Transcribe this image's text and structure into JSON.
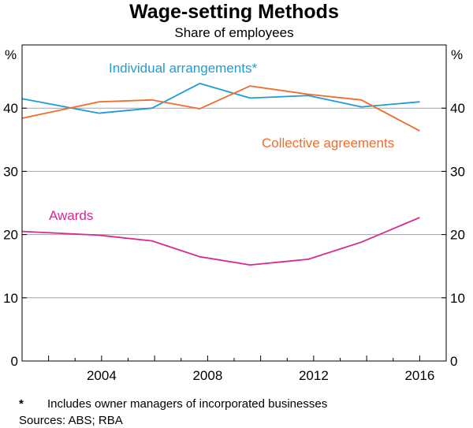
{
  "chart_data": {
    "type": "line",
    "title": "Wage-setting Methods",
    "subtitle": "Share of employees",
    "ylabel_left": "%",
    "ylabel_right": "%",
    "ylim": [
      0,
      50
    ],
    "xlim": [
      2001,
      2017
    ],
    "y_ticks": [
      0,
      10,
      20,
      30,
      40
    ],
    "x_ticks": [
      "2004",
      "2008",
      "2012",
      "2016"
    ],
    "grid": true,
    "series": [
      {
        "name": "Individual arrangements*",
        "color": "#1f9bd6",
        "x": [
          2001,
          2003.9,
          2005.9,
          2007.7,
          2009.6,
          2011.8,
          2013.8,
          2016
        ],
        "values": [
          41.5,
          39.2,
          40.0,
          43.9,
          41.6,
          42.0,
          40.2,
          41.0
        ]
      },
      {
        "name": "Collective agreements",
        "color": "#f26b2b",
        "x": [
          2001,
          2003.9,
          2005.9,
          2007.7,
          2009.6,
          2011.8,
          2013.8,
          2016
        ],
        "values": [
          38.4,
          41.0,
          41.3,
          39.9,
          43.5,
          42.2,
          41.3,
          36.4
        ]
      },
      {
        "name": "Awards",
        "color": "#d9288f",
        "x": [
          2001,
          2003.9,
          2005.9,
          2007.7,
          2009.6,
          2011.8,
          2013.8,
          2016
        ],
        "values": [
          20.5,
          19.9,
          19.0,
          16.5,
          15.2,
          16.1,
          18.8,
          22.7
        ]
      }
    ]
  },
  "footnotes": {
    "star": "*",
    "note": "Includes owner managers of incorporated businesses",
    "sources": "Sources: ABS; RBA"
  }
}
